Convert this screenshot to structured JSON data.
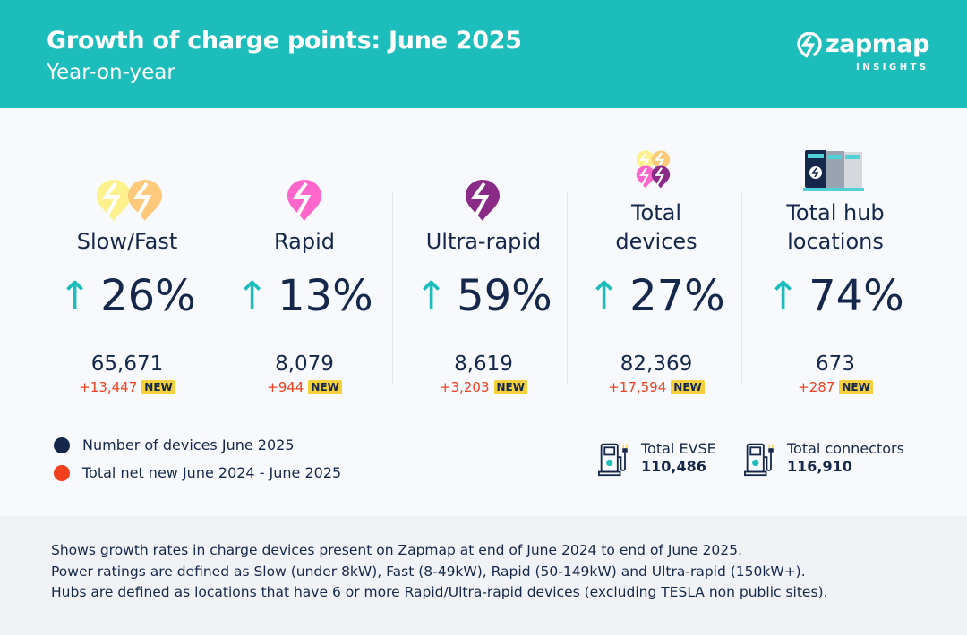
{
  "header": {
    "title": "Growth of charge points: June 2025",
    "subtitle": "Year-on-year",
    "logo": {
      "name": "zapmap",
      "tagline": "INSIGHTS"
    }
  },
  "colors": {
    "teal": "#1cbdbb",
    "navy": "#15284b",
    "red": "#f1401f",
    "badge": "#f4d03a",
    "slow": "#fdf18e",
    "fast": "#fdca7c",
    "rapid": "#ff66cc",
    "ultra": "#8a2c87"
  },
  "stats": [
    {
      "label": "Slow/Fast",
      "icon": "slow-fast-pins-icon",
      "percent": "26%",
      "count": "65,671",
      "net_new": "+13,447",
      "badge": "NEW"
    },
    {
      "label": "Rapid",
      "icon": "rapid-pin-icon",
      "percent": "13%",
      "count": "8,079",
      "net_new": "+944",
      "badge": "NEW"
    },
    {
      "label": "Ultra-rapid",
      "icon": "ultra-rapid-pin-icon",
      "percent": "59%",
      "count": "8,619",
      "net_new": "+3,203",
      "badge": "NEW"
    },
    {
      "label_lines": [
        "Total",
        "devices"
      ],
      "icon": "all-pins-icon",
      "percent": "27%",
      "count": "82,369",
      "net_new": "+17,594",
      "badge": "NEW"
    },
    {
      "label_lines": [
        "Total hub",
        "locations"
      ],
      "icon": "hub-chargers-icon",
      "percent": "74%",
      "count": "673",
      "net_new": "+287",
      "badge": "NEW"
    }
  ],
  "legend": [
    {
      "label": "Number of devices June 2025",
      "color": "#15284b"
    },
    {
      "label": "Total net new June 2024 - June 2025",
      "color": "#f1401f"
    }
  ],
  "totals": [
    {
      "label": "Total EVSE",
      "value": "110,486",
      "icon": "charging-station-icon"
    },
    {
      "label": "Total connectors",
      "value": "116,910",
      "icon": "charging-station-icon"
    }
  ],
  "footer": [
    "Shows growth rates in charge devices present on Zapmap at end of June 2024 to end of June 2025.",
    "Power ratings are defined as Slow (under 8kW), Fast (8-49kW), Rapid (50-149kW) and Ultra-rapid (150kW+).",
    "Hubs are defined as locations that have 6 or more Rapid/Ultra-rapid devices (excluding TESLA non public sites)."
  ]
}
